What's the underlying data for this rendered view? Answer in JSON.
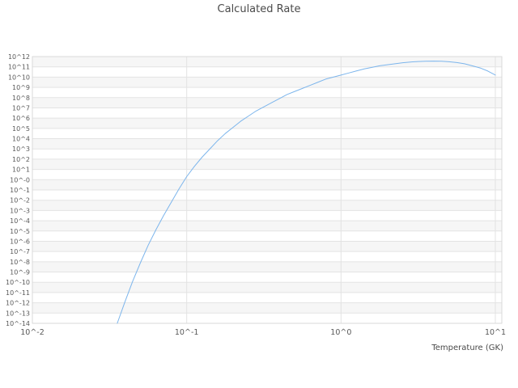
{
  "chart_data": {
    "type": "line",
    "title": "Calculated Rate",
    "xlabel": "Temperature (GK)",
    "ylabel": "",
    "x_scale": "log",
    "y_scale": "log",
    "xlim_log10": [
      -2,
      1.042
    ],
    "ylim_log10": [
      -14,
      12
    ],
    "grid": true,
    "legend": "none",
    "x_ticks": [
      {
        "log10": -2,
        "label": "10^-2"
      },
      {
        "log10": -1,
        "label": "10^-1"
      },
      {
        "log10": 0,
        "label": "10^0"
      },
      {
        "log10": 1,
        "label": "10^1"
      }
    ],
    "y_ticks": [
      {
        "log10": 12,
        "label": "10^12"
      },
      {
        "log10": 11,
        "label": "10^11"
      },
      {
        "log10": 10,
        "label": "10^10"
      },
      {
        "log10": 9,
        "label": "10^9"
      },
      {
        "log10": 8,
        "label": "10^8"
      },
      {
        "log10": 7,
        "label": "10^7"
      },
      {
        "log10": 6,
        "label": "10^6"
      },
      {
        "log10": 5,
        "label": "10^5"
      },
      {
        "log10": 4,
        "label": "10^4"
      },
      {
        "log10": 3,
        "label": "10^3"
      },
      {
        "log10": 2,
        "label": "10^2"
      },
      {
        "log10": 1,
        "label": "10^1"
      },
      {
        "log10": 0,
        "label": "10^-0"
      },
      {
        "log10": -1,
        "label": "10^-1"
      },
      {
        "log10": -2,
        "label": "10^-2"
      },
      {
        "log10": -3,
        "label": "10^-3"
      },
      {
        "log10": -4,
        "label": "10^-4"
      },
      {
        "log10": -5,
        "label": "10^-5"
      },
      {
        "log10": -6,
        "label": "10^-6"
      },
      {
        "log10": -7,
        "label": "10^-7"
      },
      {
        "log10": -8,
        "label": "10^-8"
      },
      {
        "log10": -9,
        "label": "10^-9"
      },
      {
        "log10": -10,
        "label": "10^-10"
      },
      {
        "log10": -11,
        "label": "10^-11"
      },
      {
        "log10": -12,
        "label": "10^-12"
      },
      {
        "log10": -13,
        "label": "10^-13"
      },
      {
        "log10": -14,
        "label": "10^-14"
      }
    ],
    "series": [
      {
        "name": "calculated-rate",
        "color": "#7cb5ec",
        "points_log10_x_y": [
          [
            -1.45,
            -14.0
          ],
          [
            -1.4,
            -11.9
          ],
          [
            -1.35,
            -9.9
          ],
          [
            -1.3,
            -8.1
          ],
          [
            -1.25,
            -6.4
          ],
          [
            -1.2,
            -4.9
          ],
          [
            -1.15,
            -3.5
          ],
          [
            -1.1,
            -2.2
          ],
          [
            -1.05,
            -0.9
          ],
          [
            -1.0,
            0.3
          ],
          [
            -0.95,
            1.3
          ],
          [
            -0.9,
            2.2
          ],
          [
            -0.85,
            3.0
          ],
          [
            -0.8,
            3.8
          ],
          [
            -0.75,
            4.5
          ],
          [
            -0.7,
            5.1
          ],
          [
            -0.65,
            5.7
          ],
          [
            -0.6,
            6.2
          ],
          [
            -0.55,
            6.7
          ],
          [
            -0.5,
            7.1
          ],
          [
            -0.45,
            7.5
          ],
          [
            -0.4,
            7.9
          ],
          [
            -0.35,
            8.3
          ],
          [
            -0.3,
            8.6
          ],
          [
            -0.25,
            8.9
          ],
          [
            -0.2,
            9.2
          ],
          [
            -0.15,
            9.5
          ],
          [
            -0.1,
            9.8
          ],
          [
            -0.05,
            10.0
          ],
          [
            0.0,
            10.2
          ],
          [
            0.05,
            10.4
          ],
          [
            0.1,
            10.6
          ],
          [
            0.15,
            10.8
          ],
          [
            0.2,
            10.95
          ],
          [
            0.25,
            11.1
          ],
          [
            0.3,
            11.2
          ],
          [
            0.35,
            11.3
          ],
          [
            0.4,
            11.4
          ],
          [
            0.45,
            11.47
          ],
          [
            0.5,
            11.52
          ],
          [
            0.55,
            11.55
          ],
          [
            0.6,
            11.56
          ],
          [
            0.65,
            11.55
          ],
          [
            0.7,
            11.5
          ],
          [
            0.75,
            11.42
          ],
          [
            0.8,
            11.3
          ],
          [
            0.85,
            11.1
          ],
          [
            0.9,
            10.9
          ],
          [
            0.95,
            10.6
          ],
          [
            1.0,
            10.2
          ]
        ]
      }
    ],
    "style": {
      "band_color": "#f6f6f6",
      "grid_color": "#e3e3e3",
      "border_color": "#d9d9d9",
      "tick_text_color": "#595959",
      "title_color": "#4a4a4a",
      "background": "#ffffff"
    }
  }
}
